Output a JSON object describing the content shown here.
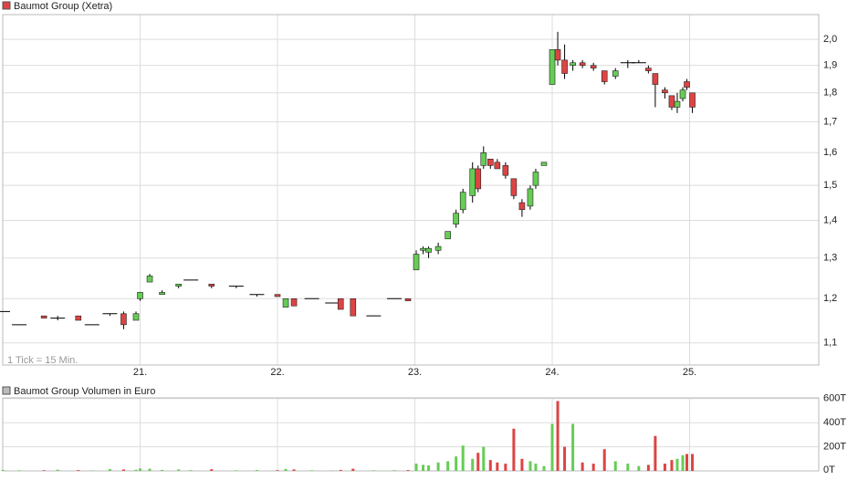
{
  "chart_data": [
    {
      "type": "candlestick",
      "legend": "Baumot Group (Xetra)",
      "note": "1 Tick = 15 Min.",
      "x": [
        20.0,
        20.12,
        20.3,
        20.4,
        20.55,
        20.65,
        20.78,
        20.88,
        20.97,
        21.0,
        21.07,
        21.16,
        21.28,
        21.37,
        21.52,
        21.7,
        21.85,
        22.0,
        22.06,
        22.12,
        22.25,
        22.4,
        22.46,
        22.55,
        22.7,
        22.85,
        22.95,
        23.01,
        23.06,
        23.1,
        23.17,
        23.24,
        23.3,
        23.35,
        23.42,
        23.46,
        23.5,
        23.55,
        23.6,
        23.66,
        23.72,
        23.78,
        23.84,
        23.88,
        23.94,
        24.0,
        24.04,
        24.09,
        24.15,
        24.22,
        24.3,
        24.38,
        24.46,
        24.55,
        24.63,
        24.7,
        24.75,
        24.82,
        24.87,
        24.91,
        24.95,
        24.98,
        25.02
      ],
      "open": [
        1.17,
        1.14,
        1.16,
        1.155,
        1.16,
        1.14,
        1.165,
        1.165,
        1.15,
        1.2,
        1.24,
        1.21,
        1.23,
        1.245,
        1.235,
        1.23,
        1.21,
        1.21,
        1.18,
        1.2,
        1.2,
        1.19,
        1.2,
        1.2,
        1.16,
        1.2,
        1.2,
        1.27,
        1.32,
        1.315,
        1.32,
        1.35,
        1.39,
        1.43,
        1.47,
        1.55,
        1.56,
        1.58,
        1.57,
        1.56,
        1.52,
        1.45,
        1.44,
        1.5,
        1.56,
        1.83,
        1.96,
        1.92,
        1.9,
        1.91,
        1.9,
        1.88,
        1.86,
        1.91,
        1.91,
        1.89,
        1.87,
        1.81,
        1.79,
        1.75,
        1.78,
        1.84,
        1.8
      ],
      "high": [
        1.17,
        1.14,
        1.16,
        1.16,
        1.16,
        1.14,
        1.165,
        1.17,
        1.17,
        1.215,
        1.26,
        1.22,
        1.235,
        1.245,
        1.235,
        1.23,
        1.21,
        1.21,
        1.2,
        1.2,
        1.2,
        1.19,
        1.2,
        1.2,
        1.16,
        1.2,
        1.2,
        1.32,
        1.33,
        1.33,
        1.34,
        1.37,
        1.43,
        1.49,
        1.57,
        1.56,
        1.62,
        1.58,
        1.58,
        1.57,
        1.52,
        1.46,
        1.5,
        1.55,
        1.57,
        1.96,
        2.03,
        1.98,
        1.92,
        1.92,
        1.91,
        1.88,
        1.89,
        1.92,
        1.92,
        1.9,
        1.87,
        1.82,
        1.79,
        1.8,
        1.82,
        1.85,
        1.8
      ],
      "low": [
        1.17,
        1.14,
        1.155,
        1.15,
        1.15,
        1.14,
        1.16,
        1.13,
        1.15,
        1.195,
        1.24,
        1.21,
        1.225,
        1.245,
        1.225,
        1.225,
        1.205,
        1.205,
        1.18,
        1.183,
        1.2,
        1.19,
        1.175,
        1.16,
        1.16,
        1.2,
        1.195,
        1.27,
        1.31,
        1.3,
        1.31,
        1.35,
        1.38,
        1.42,
        1.45,
        1.48,
        1.55,
        1.55,
        1.55,
        1.52,
        1.46,
        1.41,
        1.43,
        1.49,
        1.56,
        1.83,
        1.9,
        1.85,
        1.88,
        1.89,
        1.88,
        1.83,
        1.85,
        1.89,
        1.91,
        1.87,
        1.75,
        1.78,
        1.74,
        1.73,
        1.77,
        1.81,
        1.73
      ],
      "close": [
        1.17,
        1.14,
        1.155,
        1.155,
        1.15,
        1.14,
        1.165,
        1.14,
        1.165,
        1.215,
        1.255,
        1.215,
        1.235,
        1.245,
        1.23,
        1.23,
        1.21,
        1.205,
        1.2,
        1.183,
        1.2,
        1.19,
        1.175,
        1.16,
        1.16,
        1.2,
        1.195,
        1.31,
        1.325,
        1.325,
        1.33,
        1.37,
        1.42,
        1.48,
        1.55,
        1.49,
        1.6,
        1.56,
        1.55,
        1.53,
        1.47,
        1.43,
        1.49,
        1.54,
        1.57,
        1.96,
        1.92,
        1.87,
        1.91,
        1.9,
        1.89,
        1.84,
        1.88,
        1.91,
        1.91,
        1.88,
        1.83,
        1.8,
        1.75,
        1.77,
        1.81,
        1.82,
        1.75
      ],
      "xlim": [
        20,
        25.94
      ],
      "xticks": [
        {
          "value": 21,
          "label": "21."
        },
        {
          "value": 22,
          "label": "22."
        },
        {
          "value": 23,
          "label": "23."
        },
        {
          "value": 24,
          "label": "24."
        },
        {
          "value": 25,
          "label": "25."
        }
      ],
      "ylim": [
        1.053,
        2.1
      ],
      "log_scale": true,
      "grid": true,
      "yticks": [
        {
          "value": 1.1,
          "label": "1,1"
        },
        {
          "value": 1.2,
          "label": "1,2"
        },
        {
          "value": 1.3,
          "label": "1,3"
        },
        {
          "value": 1.4,
          "label": "1,4"
        },
        {
          "value": 1.5,
          "label": "1,5"
        },
        {
          "value": 1.6,
          "label": "1,6"
        },
        {
          "value": 1.7,
          "label": "1,7"
        },
        {
          "value": 1.8,
          "label": "1,8"
        },
        {
          "value": 1.9,
          "label": "1,9"
        },
        {
          "value": 2.0,
          "label": "2,0"
        }
      ],
      "up_color": "#66cc55",
      "down_color": "#dd4444"
    },
    {
      "type": "bar",
      "legend": "Baumot Group Volumen in Euro",
      "values": [
        8000,
        5000,
        6000,
        10000,
        7000,
        4000,
        15000,
        12000,
        9000,
        20000,
        18000,
        8000,
        12000,
        6000,
        14000,
        5000,
        7000,
        6000,
        16000,
        12000,
        5000,
        4000,
        8000,
        18000,
        5000,
        6000,
        7000,
        60000,
        50000,
        45000,
        70000,
        80000,
        120000,
        210000,
        100000,
        150000,
        200000,
        90000,
        70000,
        60000,
        350000,
        100000,
        80000,
        60000,
        40000,
        390000,
        580000,
        200000,
        390000,
        70000,
        60000,
        180000,
        80000,
        60000,
        40000,
        50000,
        290000,
        60000,
        90000,
        100000,
        130000,
        140000,
        140000
      ],
      "ylim": [
        0,
        606000
      ],
      "grid": true,
      "yticks": [
        {
          "value": 0,
          "label": "0T"
        },
        {
          "value": 200000,
          "label": "200T"
        },
        {
          "value": 400000,
          "label": "400T"
        },
        {
          "value": 600000,
          "label": "600T"
        }
      ]
    }
  ]
}
